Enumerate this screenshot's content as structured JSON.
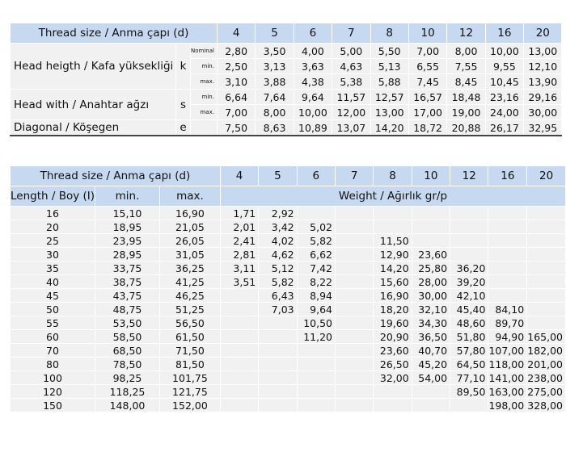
{
  "table1": {
    "header": {
      "label": "Thread size / Anma çapı (d)",
      "sizes": [
        "4",
        "5",
        "6",
        "7",
        "8",
        "10",
        "12",
        "16",
        "20"
      ]
    },
    "rows": [
      {
        "label": "Head heigth / Kafa yüksekliği",
        "symbol": "k",
        "subrows": [
          {
            "sub": "Nominal",
            "values": [
              "2,80",
              "3,50",
              "4,00",
              "5,00",
              "5,50",
              "7,00",
              "8,00",
              "10,00",
              "13,00"
            ]
          },
          {
            "sub": "min.",
            "values": [
              "2,50",
              "3,13",
              "3,63",
              "4,63",
              "5,13",
              "6,55",
              "7,55",
              "9,55",
              "12,10"
            ]
          },
          {
            "sub": "max.",
            "values": [
              "3,10",
              "3,88",
              "4,38",
              "5,38",
              "5,88",
              "7,45",
              "8,45",
              "10,45",
              "13,90"
            ]
          }
        ]
      },
      {
        "label": "Head with / Anahtar ağzı",
        "symbol": "s",
        "subrows": [
          {
            "sub": "min.",
            "values": [
              "6,64",
              "7,64",
              "9,64",
              "11,57",
              "12,57",
              "16,57",
              "18,48",
              "23,16",
              "29,16"
            ]
          },
          {
            "sub": "max.",
            "values": [
              "7,00",
              "8,00",
              "10,00",
              "12,00",
              "13,00",
              "17,00",
              "19,00",
              "24,00",
              "30,00"
            ]
          }
        ]
      },
      {
        "label": "Diagonal / Köşegen",
        "symbol": "e",
        "subrows": [
          {
            "values": [
              "7,50",
              "8,63",
              "10,89",
              "13,07",
              "14,20",
              "18,72",
              "20,88",
              "26,17",
              "32,95"
            ]
          }
        ]
      }
    ]
  },
  "table2": {
    "header": {
      "label": "Thread size / Anma çapı (d)",
      "sizes": [
        "4",
        "5",
        "6",
        "7",
        "8",
        "10",
        "12",
        "16",
        "20"
      ]
    },
    "subheader": {
      "length": "Length / Boy (I)",
      "min": "min.",
      "max": "max.",
      "weight": "Weight / Ağırlık gr/p"
    },
    "rows": [
      [
        "16",
        "15,10",
        "16,90",
        "1,71",
        "2,92",
        null,
        null,
        null,
        null,
        null,
        null,
        null
      ],
      [
        "20",
        "18,95",
        "21,05",
        "2,01",
        "3,42",
        "5,02",
        null,
        null,
        null,
        null,
        null,
        null
      ],
      [
        "25",
        "23,95",
        "26,05",
        "2,41",
        "4,02",
        "5,82",
        null,
        "11,50",
        null,
        null,
        null,
        null
      ],
      [
        "30",
        "28,95",
        "31,05",
        "2,81",
        "4,62",
        "6,62",
        null,
        "12,90",
        "23,60",
        null,
        null,
        null
      ],
      [
        "35",
        "33,75",
        "36,25",
        "3,11",
        "5,12",
        "7,42",
        null,
        "14,20",
        "25,80",
        "36,20",
        null,
        null
      ],
      [
        "40",
        "38,75",
        "41,25",
        "3,51",
        "5,82",
        "8,22",
        null,
        "15,60",
        "28,00",
        "39,20",
        null,
        null
      ],
      [
        "45",
        "43,75",
        "46,25",
        null,
        "6,43",
        "8,94",
        null,
        "16,90",
        "30,00",
        "42,10",
        null,
        null
      ],
      [
        "50",
        "48,75",
        "51,25",
        null,
        "7,03",
        "9,64",
        null,
        "18,20",
        "32,10",
        "45,40",
        "84,10",
        null
      ],
      [
        "55",
        "53,50",
        "56,50",
        null,
        null,
        "10,50",
        null,
        "19,60",
        "34,30",
        "48,60",
        "89,70",
        null
      ],
      [
        "60",
        "58,50",
        "61,50",
        null,
        null,
        "11,20",
        null,
        "20,90",
        "36,50",
        "51,80",
        "94,90",
        "165,00"
      ],
      [
        "70",
        "68,50",
        "71,50",
        null,
        null,
        null,
        null,
        "23,60",
        "40,70",
        "57,80",
        "107,00",
        "182,00"
      ],
      [
        "80",
        "78,50",
        "81,50",
        null,
        null,
        null,
        null,
        "26,50",
        "45,20",
        "64,50",
        "118,00",
        "201,00"
      ],
      [
        "100",
        "98,25",
        "101,75",
        null,
        null,
        null,
        null,
        "32,00",
        "54,00",
        "77,10",
        "141,00",
        "238,00"
      ],
      [
        "120",
        "118,25",
        "121,75",
        null,
        null,
        null,
        null,
        null,
        null,
        "89,50",
        "163,00",
        "275,00"
      ],
      [
        "150",
        "148,00",
        "152,00",
        null,
        null,
        null,
        null,
        null,
        null,
        null,
        "198,00",
        "328,00"
      ]
    ]
  }
}
